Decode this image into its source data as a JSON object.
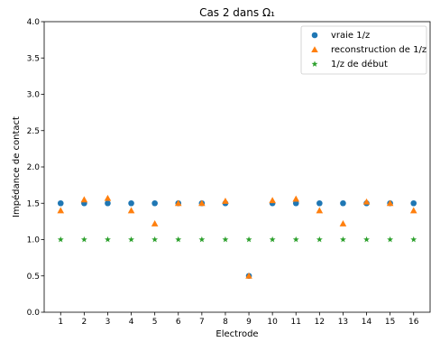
{
  "chart_data": {
    "type": "scatter",
    "title": "Cas 2 dans Ω₁",
    "xlabel": "Electrode",
    "ylabel": "Impédance de contact",
    "xlim": [
      0.3,
      16.7
    ],
    "ylim": [
      0.0,
      4.0
    ],
    "x_ticks": [
      1,
      2,
      3,
      4,
      5,
      6,
      7,
      8,
      9,
      10,
      11,
      12,
      13,
      14,
      15,
      16
    ],
    "y_ticks": [
      "0.0",
      "0.5",
      "1.0",
      "1.5",
      "2.0",
      "2.5",
      "3.0",
      "3.5",
      "4.0"
    ],
    "grid": false,
    "legend_position": "top-right",
    "x": [
      1,
      2,
      3,
      4,
      5,
      6,
      7,
      8,
      9,
      10,
      11,
      12,
      13,
      14,
      15,
      16
    ],
    "series": [
      {
        "name": "vraie 1/z",
        "marker": "circle",
        "color": "#1f77b4",
        "values": [
          1.5,
          1.5,
          1.5,
          1.5,
          1.5,
          1.5,
          1.5,
          1.5,
          0.5,
          1.5,
          1.5,
          1.5,
          1.5,
          1.5,
          1.5,
          1.5
        ]
      },
      {
        "name": "reconstruction de 1/z",
        "marker": "triangle",
        "color": "#ff7f0e",
        "values": [
          1.4,
          1.55,
          1.57,
          1.4,
          1.22,
          1.5,
          1.5,
          1.53,
          0.5,
          1.54,
          1.56,
          1.4,
          1.22,
          1.52,
          1.5,
          1.4
        ]
      },
      {
        "name": "1/z de début",
        "marker": "star",
        "color": "#2ca02c",
        "values": [
          1.0,
          1.0,
          1.0,
          1.0,
          1.0,
          1.0,
          1.0,
          1.0,
          1.0,
          1.0,
          1.0,
          1.0,
          1.0,
          1.0,
          1.0,
          1.0
        ]
      }
    ]
  }
}
